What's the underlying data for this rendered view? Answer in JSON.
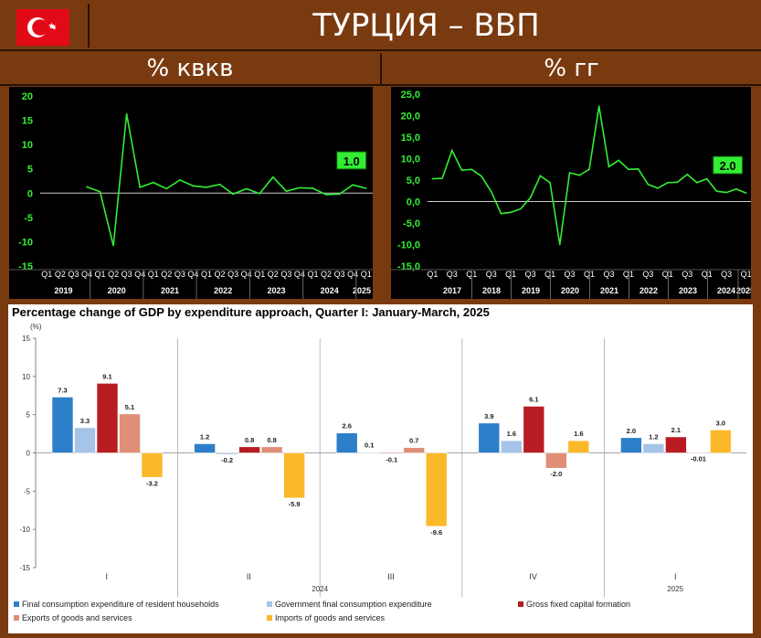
{
  "header": {
    "title": "ТУРЦИЯ – ВВП",
    "flag_color": "#e30a17"
  },
  "qoq": {
    "subtitle": "% квкв",
    "callout": "1.0",
    "line_color": "#33ee33",
    "yticks": [
      "20",
      "15",
      "10",
      "5",
      "0",
      "-5",
      "-10",
      "-15"
    ],
    "quarter_labels": [
      "Q1",
      "Q2",
      "Q3",
      "Q4",
      "Q1",
      "Q2",
      "Q3",
      "Q4",
      "Q1",
      "Q2",
      "Q3",
      "Q4",
      "Q1",
      "Q2",
      "Q3",
      "Q4",
      "Q1",
      "Q2",
      "Q3",
      "Q4",
      "Q1",
      "Q2",
      "Q3",
      "Q4",
      "Q1"
    ],
    "years": [
      "2019",
      "2020",
      "2021",
      "2022",
      "2023",
      "2024",
      "2025"
    ]
  },
  "yoy": {
    "subtitle": "% гг",
    "callout": "2.0",
    "line_color": "#33ee33",
    "yticks": [
      "25,0",
      "20,0",
      "15,0",
      "10,0",
      "5,0",
      "0,0",
      "-5,0",
      "-10,0",
      "-15,0"
    ],
    "quarter_labels": [
      "Q1",
      "Q3",
      "Q1",
      "Q3",
      "Q1",
      "Q3",
      "Q1",
      "Q3",
      "Q1",
      "Q3",
      "Q1",
      "Q3",
      "Q1",
      "Q3",
      "Q1",
      "Q3",
      "Q1"
    ],
    "years": [
      "2017",
      "2018",
      "2019",
      "2020",
      "2021",
      "2022",
      "2023",
      "2024",
      "2025"
    ]
  },
  "gdp": {
    "title": "Percentage change of GDP by expenditure approach, Quarter I: January-March, 2025",
    "unit": "(%)",
    "yticks": [
      "15",
      "10",
      "5",
      "0",
      "-5",
      "-10",
      "-15"
    ],
    "group_labels": [
      "I",
      "II",
      "III",
      "IV",
      "I"
    ],
    "year_labels": [
      "2024",
      "2025"
    ],
    "legend": [
      "Final consumption expenditure of resident households",
      "Government final consumption expenditure",
      "Gross fixed capital formation",
      "Exports of goods and services",
      "Imports of goods and services"
    ],
    "value_labels": [
      [
        "7.3",
        "3.3",
        "9.1",
        "5.1",
        "-3.2"
      ],
      [
        "1.2",
        "-0.2",
        "0.8",
        "0.8",
        "-5.9"
      ],
      [
        "2.6",
        "0.1",
        "-0.1",
        "0.7",
        "-9.6"
      ],
      [
        "3.9",
        "1.6",
        "6.1",
        "-2.0",
        "1.6"
      ],
      [
        "2.0",
        "1.2",
        "2.1",
        "-0.01",
        "3.0"
      ]
    ]
  },
  "chart_data": [
    {
      "type": "line",
      "title": "% квкв",
      "ylim": [
        -15,
        20
      ],
      "x": [
        "2019 Q1",
        "2019 Q2",
        "2019 Q3",
        "2019 Q4",
        "2020 Q1",
        "2020 Q2",
        "2020 Q3",
        "2020 Q4",
        "2021 Q1",
        "2021 Q2",
        "2021 Q3",
        "2021 Q4",
        "2022 Q1",
        "2022 Q2",
        "2022 Q3",
        "2022 Q4",
        "2023 Q1",
        "2023 Q2",
        "2023 Q3",
        "2023 Q4",
        "2024 Q1",
        "2024 Q2",
        "2024 Q3",
        "2024 Q4",
        "2025 Q1"
      ],
      "series": [
        {
          "values": [
            null,
            null,
            null,
            1.3,
            0.3,
            -10.8,
            16.3,
            1.2,
            2.2,
            0.9,
            2.7,
            1.5,
            1.2,
            1.8,
            -0.2,
            0.9,
            -0.1,
            3.3,
            0.4,
            1.1,
            1.0,
            -0.3,
            -0.2,
            1.7,
            1.0
          ]
        }
      ]
    },
    {
      "type": "line",
      "title": "% гг",
      "ylim": [
        -15,
        25
      ],
      "x": [
        "2017 Q1",
        "2017 Q2",
        "2017 Q3",
        "2017 Q4",
        "2018 Q1",
        "2018 Q2",
        "2018 Q3",
        "2018 Q4",
        "2019 Q1",
        "2019 Q2",
        "2019 Q3",
        "2019 Q4",
        "2020 Q1",
        "2020 Q2",
        "2020 Q3",
        "2020 Q4",
        "2021 Q1",
        "2021 Q2",
        "2021 Q3",
        "2021 Q4",
        "2022 Q1",
        "2022 Q2",
        "2022 Q3",
        "2022 Q4",
        "2023 Q1",
        "2023 Q2",
        "2023 Q3",
        "2023 Q4",
        "2024 Q1",
        "2024 Q2",
        "2024 Q3",
        "2024 Q4",
        "2025 Q1"
      ],
      "series": [
        {
          "values": [
            5.3,
            5.4,
            11.9,
            7.3,
            7.5,
            5.9,
            2.3,
            -2.8,
            -2.5,
            -1.7,
            0.9,
            6.0,
            4.4,
            -10.0,
            6.7,
            6.1,
            7.5,
            22.2,
            8.1,
            9.6,
            7.5,
            7.6,
            4.0,
            3.1,
            4.4,
            4.5,
            6.3,
            4.4,
            5.3,
            2.4,
            2.1,
            2.9,
            2.0
          ]
        }
      ]
    },
    {
      "type": "bar",
      "title": "Percentage change of GDP by expenditure approach, Quarter I: January-March, 2025",
      "ylabel": "(%)",
      "ylim": [
        -15,
        15
      ],
      "categories": [
        "2024 I",
        "2024 II",
        "2024 III",
        "2024 IV",
        "2025 I"
      ],
      "series": [
        {
          "name": "Final consumption expenditure of resident households",
          "color": "#2e7fc9",
          "values": [
            7.3,
            1.2,
            2.6,
            3.9,
            2.0
          ]
        },
        {
          "name": "Government final consumption expenditure",
          "color": "#a6c4e8",
          "values": [
            3.3,
            -0.2,
            0.1,
            1.6,
            1.2
          ]
        },
        {
          "name": "Gross fixed capital formation",
          "color": "#b81c22",
          "values": [
            9.1,
            0.8,
            -0.1,
            6.1,
            2.1
          ]
        },
        {
          "name": "Exports of goods and services",
          "color": "#e08e78",
          "values": [
            5.1,
            0.8,
            0.7,
            -2.0,
            -0.01
          ]
        },
        {
          "name": "Imports of goods and services",
          "color": "#fbb829",
          "values": [
            -3.2,
            -5.9,
            -9.6,
            1.6,
            3.0
          ]
        }
      ]
    }
  ]
}
